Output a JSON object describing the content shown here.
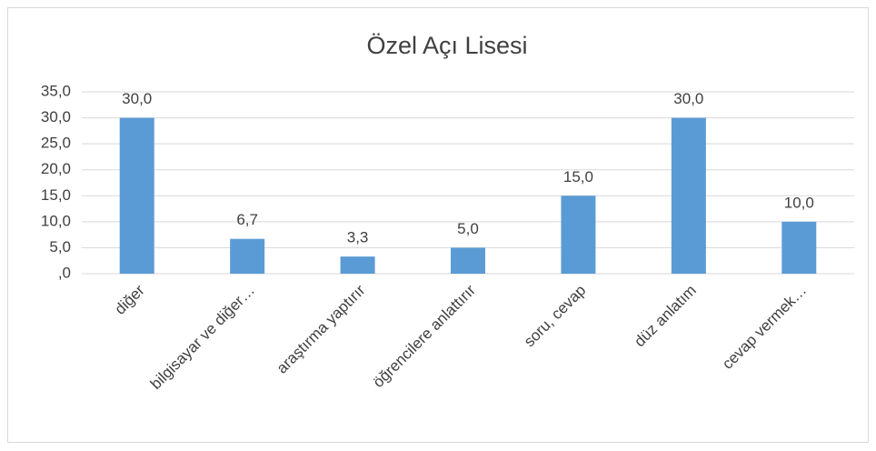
{
  "chart_data": {
    "type": "bar",
    "title": "Özel Açı Lisesi",
    "categories": [
      "diğer",
      "bilgisayar ve diğer…",
      "araştırma yaptırır",
      "öğrencilere anlattırır",
      "soru, cevap",
      "düz anlatım",
      "cevap vermek…"
    ],
    "values": [
      30,
      6.7,
      3.3,
      5,
      15,
      30,
      10
    ],
    "value_labels": [
      "30,0",
      "6,7",
      "3,3",
      "5,0",
      "15,0",
      "30,0",
      "10,0"
    ],
    "color": "#5b9bd5",
    "ylim": [
      0,
      35
    ],
    "yticks": [
      {
        "value": 0,
        "label": ",0"
      },
      {
        "value": 5,
        "label": "5,0"
      },
      {
        "value": 10,
        "label": "10,0"
      },
      {
        "value": 15,
        "label": "15,0"
      },
      {
        "value": 20,
        "label": "20,0"
      },
      {
        "value": 25,
        "label": "25,0"
      },
      {
        "value": 30,
        "label": "30,0"
      },
      {
        "value": 35,
        "label": "35,0"
      }
    ],
    "grid": true
  }
}
